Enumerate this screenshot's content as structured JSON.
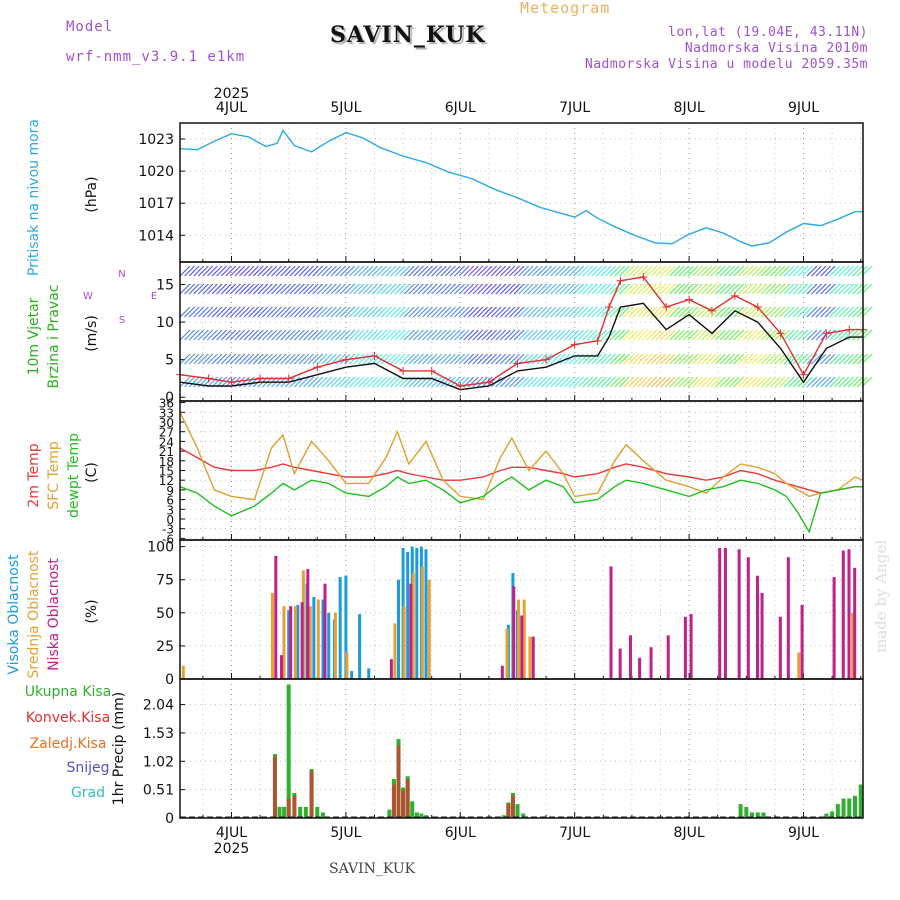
{
  "header": {
    "model_label": "Model",
    "model_name": "wrf-nmm_v3.9.1 e1km",
    "meteogram_label": "Meteogram",
    "station": "SAVIN_KUK",
    "lonlat": "lon,lat (19.04E, 43.11N)",
    "elevation": "Nadmorska Visina 2010m",
    "model_elevation": "Nadmorska Visina u modelu 2059.35m"
  },
  "footer": {
    "station": "SAVIN_KUK",
    "made_by": "made by Angel"
  },
  "colors": {
    "pressure": "#2aa8e8",
    "wind_speed": "#111111",
    "wind_gust": "#e03030",
    "t2m": "#e83a3a",
    "tsfc": "#e0a030",
    "dewpt": "#20c020",
    "high_cloud": "#1a9be0",
    "mid_cloud": "#e8a030",
    "low_cloud": "#c0208a",
    "total_precip": "#30b030",
    "conv_precip": "#e03030",
    "frz_precip": "#e87020",
    "snow": "#5050d0",
    "graupel": "#30c0c0"
  },
  "chart_data": {
    "type": "line",
    "x_axis": {
      "year_label": "2025",
      "day_labels": [
        "4JUL",
        "5JUL",
        "6JUL",
        "7JUL",
        "8JUL",
        "9JUL"
      ],
      "range_days": [
        3.55,
        9.52
      ]
    },
    "panels": [
      {
        "id": "pressure",
        "type": "line",
        "label_lines": [
          "Pritisak na nivou mora"
        ],
        "unit": "(hPa)",
        "yticks": [
          "1023",
          "1020",
          "1017",
          "1014"
        ],
        "ylim": [
          1011.5,
          1024.5
        ],
        "x": [
          3.55,
          3.7,
          3.85,
          4.0,
          4.15,
          4.3,
          4.4,
          4.45,
          4.55,
          4.7,
          4.85,
          5.0,
          5.15,
          5.3,
          5.5,
          5.7,
          5.9,
          6.1,
          6.3,
          6.5,
          6.7,
          6.9,
          7.0,
          7.1,
          7.2,
          7.35,
          7.5,
          7.7,
          7.85,
          8.0,
          8.15,
          8.3,
          8.45,
          8.55,
          8.7,
          8.85,
          9.0,
          9.15,
          9.3,
          9.45,
          9.52
        ],
        "series": [
          {
            "name": "",
            "values": [
              1022.1,
              1022.0,
              1022.8,
              1023.5,
              1023.2,
              1022.3,
              1022.6,
              1023.8,
              1022.4,
              1021.8,
              1022.8,
              1023.6,
              1023.1,
              1022.2,
              1021.4,
              1020.8,
              1019.9,
              1019.3,
              1018.3,
              1017.5,
              1016.6,
              1016.0,
              1015.7,
              1016.3,
              1015.6,
              1014.8,
              1014.1,
              1013.3,
              1013.2,
              1014.1,
              1014.7,
              1014.2,
              1013.4,
              1013.0,
              1013.3,
              1014.3,
              1015.1,
              1014.9,
              1015.5,
              1016.2,
              1016.2
            ]
          }
        ]
      },
      {
        "id": "wind",
        "type": "line",
        "label_lines": [
          "10m Vjetar",
          "Brzina i Pravac"
        ],
        "unit": "(m/s)",
        "yticks": [
          "15",
          "10",
          "5",
          "0"
        ],
        "ylim": [
          -0.5,
          18
        ],
        "compass": [
          "N",
          "W",
          "E",
          "S"
        ],
        "x": [
          3.55,
          3.8,
          4.0,
          4.25,
          4.5,
          4.75,
          5.0,
          5.25,
          5.5,
          5.75,
          6.0,
          6.25,
          6.5,
          6.75,
          7.0,
          7.2,
          7.3,
          7.4,
          7.6,
          7.8,
          8.0,
          8.2,
          8.4,
          8.6,
          8.8,
          9.0,
          9.2,
          9.4,
          9.52
        ],
        "series": [
          {
            "name": "",
            "values": [
              2.0,
              1.5,
              1.5,
              2.0,
              2.0,
              3.0,
              4.0,
              4.5,
              2.5,
              2.5,
              1.0,
              1.5,
              3.5,
              4.0,
              5.5,
              5.5,
              8.0,
              12.0,
              12.5,
              9.0,
              11.0,
              8.5,
              11.5,
              10.0,
              6.5,
              2.0,
              6.5,
              8.0,
              8.0
            ]
          },
          {
            "name": "",
            "values": [
              3.0,
              2.5,
              2.0,
              2.5,
              2.5,
              4.0,
              5.0,
              5.5,
              3.5,
              3.5,
              1.5,
              2.0,
              4.5,
              5.0,
              7.0,
              7.5,
              12.0,
              15.5,
              16.0,
              12.0,
              13.0,
              11.5,
              13.5,
              12.0,
              8.5,
              3.0,
              8.5,
              9.0,
              9.0
            ]
          }
        ]
      },
      {
        "id": "temperature",
        "type": "line",
        "label_lines": [
          "2m Temp",
          "SFC Temp",
          "dewpt Temp"
        ],
        "unit": "(C)",
        "yticks": [
          "36",
          "33",
          "30",
          "27",
          "24",
          "21",
          "18",
          "15",
          "12",
          "9",
          "6",
          "3",
          "0",
          "-3",
          "-6"
        ],
        "ylim": [
          -6.5,
          36.5
        ],
        "x": [
          3.55,
          3.7,
          3.85,
          4.0,
          4.2,
          4.35,
          4.45,
          4.55,
          4.7,
          4.85,
          5.0,
          5.2,
          5.35,
          5.45,
          5.55,
          5.7,
          5.85,
          6.0,
          6.2,
          6.35,
          6.45,
          6.6,
          6.75,
          6.9,
          7.0,
          7.2,
          7.35,
          7.45,
          7.6,
          7.8,
          8.0,
          8.15,
          8.3,
          8.45,
          8.6,
          8.75,
          8.85,
          8.95,
          9.05,
          9.15,
          9.3,
          9.45,
          9.52
        ],
        "series": [
          {
            "name": "",
            "values": [
              22,
              19,
              16,
              15,
              15,
              16,
              17,
              16,
              15,
              14,
              13,
              13,
              14,
              15,
              14,
              13,
              12,
              12,
              13,
              15,
              16,
              16,
              15,
              14,
              13,
              14,
              16,
              17,
              16,
              14,
              13,
              12,
              13,
              15,
              14,
              12,
              11,
              10,
              9,
              8,
              9,
              10,
              10
            ]
          },
          {
            "name": "",
            "values": [
              33,
              22,
              9,
              7,
              6,
              22,
              26,
              14,
              24,
              18,
              11,
              11,
              19,
              27,
              17,
              24,
              12,
              7,
              6,
              19,
              25,
              15,
              21,
              14,
              7,
              8,
              18,
              23,
              18,
              12,
              10,
              8,
              13,
              17,
              16,
              14,
              11,
              9,
              7,
              8,
              9,
              13,
              12
            ]
          },
          {
            "name": "",
            "values": [
              10,
              8,
              4,
              1,
              4,
              8,
              11,
              9,
              12,
              11,
              8,
              7,
              10,
              13,
              11,
              12,
              9,
              5,
              7,
              11,
              13,
              9,
              12,
              10,
              5,
              6,
              10,
              12,
              11,
              9,
              7,
              9,
              10,
              12,
              11,
              9,
              7,
              2,
              -4,
              8,
              9,
              10,
              10
            ]
          }
        ]
      },
      {
        "id": "cloud",
        "type": "bar",
        "label_lines": [
          "Visoka Oblacnost",
          "Srednja Oblacnost",
          "Niska Oblacnost"
        ],
        "unit": "(%)",
        "yticks": [
          "100",
          "75",
          "50",
          "25",
          "0"
        ],
        "ylim": [
          0,
          105
        ],
        "series": [
          {
            "name": "high",
            "x": [
              4.5,
              4.58,
              4.66,
              4.72,
              4.8,
              4.85,
              4.9,
              4.95,
              5.0,
              5.05,
              5.12,
              5.2,
              5.46,
              5.5,
              5.54,
              5.58,
              5.62,
              5.66,
              5.7,
              6.42,
              6.46,
              6.5
            ],
            "values": [
              52,
              56,
              72,
              62,
              60,
              50,
              45,
              77,
              78,
              6,
              49,
              8,
              75,
              99,
              96,
              100,
              99,
              100,
              98,
              41,
              80,
              52
            ]
          },
          {
            "name": "mid",
            "x": [
              3.57,
              4.35,
              4.45,
              4.55,
              4.62,
              4.68,
              4.75,
              4.9,
              5.0,
              5.42,
              5.5,
              5.58,
              5.66,
              5.72,
              6.4,
              6.5,
              6.55,
              6.6,
              8.95,
              9.42
            ],
            "values": [
              10,
              65,
              55,
              55,
              82,
              55,
              60,
              50,
              20,
              42,
              55,
              80,
              85,
              75,
              38,
              60,
              60,
              32,
              20,
              50
            ]
          },
          {
            "name": "low",
            "x": [
              4.37,
              4.42,
              4.5,
              4.6,
              4.65,
              4.8,
              5.38,
              5.55,
              6.35,
              6.45,
              6.52,
              6.62,
              7.3,
              7.38,
              7.47,
              7.55,
              7.65,
              7.8,
              7.95,
              8.0,
              8.25,
              8.3,
              8.42,
              8.5,
              8.58,
              8.62,
              8.78,
              8.85,
              8.97,
              9.25,
              9.33,
              9.38,
              9.43
            ],
            "values": [
              93,
              18,
              55,
              58,
              83,
              72,
              15,
              72,
              10,
              70,
              48,
              32,
              85,
              23,
              33,
              16,
              24,
              33,
              47,
              49,
              99,
              99,
              98,
              92,
              78,
              65,
              47,
              92,
              56,
              77,
              97,
              98,
              84
            ]
          }
        ]
      },
      {
        "id": "precip",
        "type": "bar",
        "label_lines": [
          "Ukupna Kisa",
          "Konvek.Kisa",
          "Zaledj.Kisa",
          "Snijeg",
          "Grad"
        ],
        "unit": "1hr Precip (mm)",
        "yticks": [
          "2.04",
          "1.53",
          "1.02",
          "0.51",
          "0"
        ],
        "ylim": [
          0,
          2.5
        ],
        "series": [
          {
            "name": "total",
            "x": [
              4.38,
              4.42,
              4.46,
              4.5,
              4.55,
              4.6,
              4.65,
              4.7,
              4.75,
              4.8,
              5.38,
              5.42,
              5.46,
              5.5,
              5.54,
              5.58,
              5.62,
              5.66,
              5.7,
              6.38,
              6.42,
              6.46,
              6.5,
              6.55,
              8.45,
              8.5,
              8.55,
              8.6,
              8.65,
              9.2,
              9.25,
              9.3,
              9.35,
              9.4,
              9.45,
              9.5
            ],
            "values": [
              1.15,
              0.2,
              0.2,
              2.4,
              0.45,
              0.2,
              0.2,
              0.88,
              0.2,
              0.1,
              0.15,
              0.7,
              1.42,
              0.55,
              0.75,
              0.3,
              0.1,
              0.08,
              0.05,
              0.05,
              0.28,
              0.45,
              0.25,
              0.08,
              0.25,
              0.2,
              0.1,
              0.1,
              0.1,
              0.08,
              0.12,
              0.25,
              0.35,
              0.35,
              0.4,
              0.6
            ]
          },
          {
            "name": "convective",
            "x": [
              4.38,
              4.5,
              4.55,
              4.7,
              5.42,
              5.46,
              5.5,
              5.54,
              6.42,
              6.46
            ],
            "values": [
              1.1,
              0.35,
              0.4,
              0.85,
              0.6,
              1.3,
              0.5,
              0.7,
              0.25,
              0.4
            ]
          }
        ]
      }
    ]
  }
}
